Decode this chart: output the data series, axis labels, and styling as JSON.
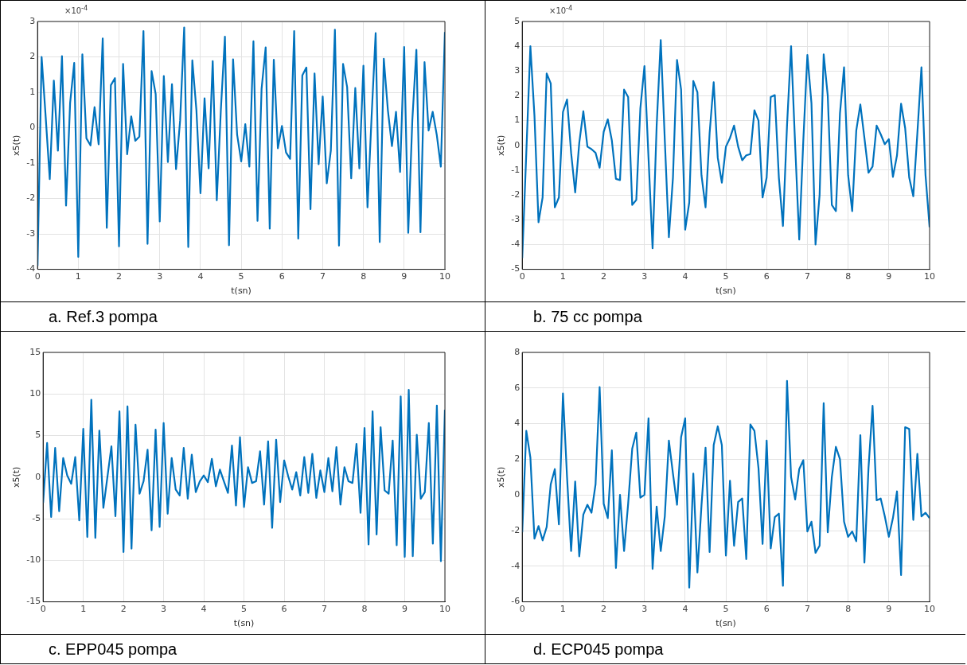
{
  "chart_data": [
    {
      "type": "line",
      "title": "a. Ref.3 pompa",
      "ylabel": "x5(t)",
      "xlabel": "t(sn)",
      "annotations": [
        "×10$^{-4}$"
      ],
      "grid": true,
      "legend": false,
      "marker": "none",
      "line_style": "solid",
      "xlim": [
        0,
        10
      ],
      "xticks": [
        0,
        1,
        2,
        3,
        4,
        5,
        6,
        7,
        8,
        9,
        10
      ],
      "ylim": [
        -4,
        3
      ],
      "yticks": [
        -4,
        -3,
        -2,
        -1,
        0,
        1,
        2,
        3
      ],
      "x": [
        0,
        0.1,
        0.2,
        0.3,
        0.4,
        0.5,
        0.6,
        0.7,
        0.8,
        0.9,
        1,
        1.1,
        1.2,
        1.3,
        1.4,
        1.5,
        1.6,
        1.7,
        1.8,
        1.9,
        2,
        2.1,
        2.2,
        2.3,
        2.4,
        2.5,
        2.6,
        2.7,
        2.8,
        2.9,
        3,
        3.1,
        3.2,
        3.3,
        3.4,
        3.5,
        3.6,
        3.7,
        3.8,
        3.9,
        4,
        4.1,
        4.2,
        4.3,
        4.4,
        4.5,
        4.6,
        4.7,
        4.8,
        4.9,
        5,
        5.1,
        5.2,
        5.3,
        5.4,
        5.5,
        5.6,
        5.7,
        5.8,
        5.9,
        6,
        6.1,
        6.2,
        6.3,
        6.4,
        6.5,
        6.6,
        6.7,
        6.8,
        6.9,
        7,
        7.1,
        7.2,
        7.3,
        7.4,
        7.5,
        7.6,
        7.7,
        7.8,
        7.9,
        8,
        8.1,
        8.2,
        8.3,
        8.4,
        8.5,
        8.6,
        8.7,
        8.8,
        8.9,
        9,
        9.1,
        9.2,
        9.3,
        9.4,
        9.5,
        9.6,
        9.7,
        9.8,
        9.9,
        10
      ],
      "series": [
        {
          "color": "#0072bd",
          "values": [
            -3.9,
            2.0,
            0.3,
            -1.45,
            1.33,
            -0.65,
            2.02,
            -2.2,
            0.7,
            1.83,
            -3.65,
            2.07,
            -0.3,
            -0.5,
            0.58,
            -0.47,
            2.52,
            -2.83,
            1.2,
            1.4,
            -3.35,
            1.8,
            -0.75,
            0.32,
            -0.37,
            -0.25,
            2.73,
            -3.28,
            1.6,
            0.95,
            -2.65,
            1.46,
            -0.97,
            1.23,
            -1.17,
            0.2,
            2.83,
            -3.37,
            1.9,
            0.5,
            -1.85,
            0.83,
            -1.15,
            1.88,
            -2.05,
            0.5,
            2.57,
            -3.32,
            1.93,
            -0.2,
            -0.95,
            0.1,
            -1.1,
            2.44,
            -2.63,
            1.1,
            2.27,
            -2.85,
            1.92,
            -0.58,
            0.05,
            -0.7,
            -0.88,
            2.73,
            -3.13,
            1.48,
            1.7,
            -2.3,
            1.53,
            -1.03,
            0.88,
            -1.57,
            -0.65,
            2.77,
            -3.33,
            1.8,
            1.15,
            -1.43,
            1.12,
            -1.15,
            1.75,
            -2.25,
            0.3,
            2.67,
            -3.23,
            1.95,
            0.5,
            -0.52,
            0.45,
            -1.25,
            2.28,
            -2.97,
            0.2,
            2.2,
            -2.95,
            1.85,
            -0.08,
            0.45,
            -0.2,
            -1.1,
            2.7
          ]
        }
      ]
    },
    {
      "type": "line",
      "title": "b. 75 cc pompa",
      "ylabel": "x5(t)",
      "xlabel": "t(sn)",
      "annotations": [
        "×10$^{-4}$"
      ],
      "grid": true,
      "legend": false,
      "marker": "none",
      "line_style": "solid",
      "xlim": [
        0,
        10
      ],
      "xticks": [
        0,
        1,
        2,
        3,
        4,
        5,
        6,
        7,
        8,
        9,
        10
      ],
      "ylim": [
        -5,
        5
      ],
      "yticks": [
        -5,
        -4,
        -3,
        -2,
        -1,
        0,
        1,
        2,
        3,
        4,
        5
      ],
      "x": [
        0,
        0.1,
        0.2,
        0.3,
        0.4,
        0.5,
        0.6,
        0.7,
        0.8,
        0.9,
        1,
        1.1,
        1.2,
        1.3,
        1.4,
        1.5,
        1.6,
        1.7,
        1.8,
        1.9,
        2,
        2.1,
        2.2,
        2.3,
        2.4,
        2.5,
        2.6,
        2.7,
        2.8,
        2.9,
        3,
        3.1,
        3.2,
        3.3,
        3.4,
        3.5,
        3.6,
        3.7,
        3.8,
        3.9,
        4,
        4.1,
        4.2,
        4.3,
        4.4,
        4.5,
        4.6,
        4.7,
        4.8,
        4.9,
        5,
        5.1,
        5.2,
        5.3,
        5.4,
        5.5,
        5.6,
        5.7,
        5.8,
        5.9,
        6,
        6.1,
        6.2,
        6.3,
        6.4,
        6.5,
        6.6,
        6.7,
        6.8,
        6.9,
        7,
        7.1,
        7.2,
        7.3,
        7.4,
        7.5,
        7.6,
        7.7,
        7.8,
        7.9,
        8,
        8.1,
        8.2,
        8.3,
        8.4,
        8.5,
        8.6,
        8.7,
        8.8,
        8.9,
        9,
        9.1,
        9.2,
        9.3,
        9.4,
        9.5,
        9.6,
        9.7,
        9.8,
        9.9,
        10
      ],
      "series": [
        {
          "color": "#0072bd",
          "values": [
            -4.55,
            -0.3,
            4.0,
            1.2,
            -3.1,
            -2.1,
            2.9,
            2.5,
            -2.5,
            -2.1,
            1.35,
            1.85,
            -0.3,
            -1.9,
            0.1,
            1.38,
            -0.05,
            -0.15,
            -0.3,
            -0.9,
            0.55,
            1.05,
            0.2,
            -1.35,
            -1.4,
            2.25,
            1.95,
            -2.4,
            -2.2,
            1.5,
            3.2,
            -0.5,
            -4.15,
            0.8,
            4.25,
            0.2,
            -3.7,
            -1.3,
            3.45,
            2.25,
            -3.4,
            -2.3,
            2.6,
            2.15,
            -1.2,
            -2.5,
            0.5,
            2.55,
            -0.5,
            -1.5,
            -0.05,
            0.3,
            0.8,
            -0.05,
            -0.6,
            -0.4,
            -0.35,
            1.42,
            1.0,
            -2.1,
            -1.3,
            1.95,
            2.03,
            -1.3,
            -3.25,
            0.8,
            4.0,
            0,
            -3.8,
            0.2,
            3.65,
            1.7,
            -4.0,
            -2.0,
            3.67,
            2.0,
            -2.4,
            -2.65,
            1.3,
            3.15,
            -1.2,
            -2.65,
            0.6,
            1.65,
            0.3,
            -1.1,
            -0.85,
            0.8,
            0.45,
            0.05,
            0.25,
            -1.27,
            -0.4,
            1.68,
            0.7,
            -1.3,
            -2.05,
            0.5,
            3.15,
            -1.2,
            -3.3
          ]
        }
      ]
    },
    {
      "type": "line",
      "title": "c. EPP045 pompa",
      "ylabel": "x5(t)",
      "xlabel": "t(sn)",
      "grid": true,
      "legend": false,
      "marker": "none",
      "line_style": "solid",
      "xlim": [
        0,
        10
      ],
      "xticks": [
        0,
        1,
        2,
        3,
        4,
        5,
        6,
        7,
        8,
        9,
        10
      ],
      "ylim": [
        -15,
        15
      ],
      "yticks": [
        -15,
        -10,
        -5,
        0,
        5,
        10,
        15
      ],
      "x": [
        0,
        0.1,
        0.2,
        0.3,
        0.4,
        0.5,
        0.6,
        0.7,
        0.8,
        0.9,
        1,
        1.1,
        1.2,
        1.3,
        1.4,
        1.5,
        1.6,
        1.7,
        1.8,
        1.9,
        2,
        2.1,
        2.2,
        2.3,
        2.4,
        2.5,
        2.6,
        2.7,
        2.8,
        2.9,
        3,
        3.1,
        3.2,
        3.3,
        3.4,
        3.5,
        3.6,
        3.7,
        3.8,
        3.9,
        4,
        4.1,
        4.2,
        4.3,
        4.4,
        4.5,
        4.6,
        4.7,
        4.8,
        4.9,
        5,
        5.1,
        5.2,
        5.3,
        5.4,
        5.5,
        5.6,
        5.7,
        5.8,
        5.9,
        6,
        6.1,
        6.2,
        6.3,
        6.4,
        6.5,
        6.6,
        6.7,
        6.8,
        6.9,
        7,
        7.1,
        7.2,
        7.3,
        7.4,
        7.5,
        7.6,
        7.7,
        7.8,
        7.9,
        8,
        8.1,
        8.2,
        8.3,
        8.4,
        8.5,
        8.6,
        8.7,
        8.8,
        8.9,
        9,
        9.1,
        9.2,
        9.3,
        9.4,
        9.5,
        9.6,
        9.7,
        9.8,
        9.9,
        10
      ],
      "series": [
        {
          "color": "#0072bd",
          "values": [
            -3.1,
            4.1,
            -4.8,
            3.5,
            -4.1,
            2.3,
            0.2,
            -0.8,
            2.4,
            -5.2,
            5.8,
            -7.2,
            9.3,
            -7.3,
            5.6,
            -3.7,
            0,
            3.7,
            -4.7,
            7.9,
            -9.0,
            8.5,
            -8.6,
            6.3,
            -2.0,
            -0.5,
            3.3,
            -6.4,
            5.7,
            -6.0,
            6.5,
            -4.4,
            2.3,
            -1.5,
            -2.2,
            3.5,
            -2.6,
            2.7,
            -1.8,
            -0.5,
            0.2,
            -0.6,
            2.2,
            -1.1,
            0.9,
            -0.5,
            -1.9,
            3.8,
            -3.4,
            4.8,
            -3.6,
            1.2,
            -0.7,
            -0.5,
            3.1,
            -3.3,
            4.3,
            -6.1,
            4.5,
            -3.0,
            2.0,
            0.1,
            -1.5,
            0.6,
            -2.2,
            2.4,
            -1.9,
            2.8,
            -2.5,
            0.8,
            -1.8,
            2.3,
            -1.7,
            3.6,
            -3.3,
            1.2,
            -0.5,
            -0.7,
            4.0,
            -4.3,
            5.9,
            -8.1,
            7.9,
            -6.9,
            6.0,
            -1.6,
            -2.0,
            4.4,
            -8.2,
            9.7,
            -9.6,
            10.5,
            -9.5,
            5.1,
            -2.6,
            -1.8,
            6.5,
            -8.0,
            8.6,
            -10.1,
            8.1
          ]
        }
      ]
    },
    {
      "type": "line",
      "title": "d. ECP045 pompa",
      "ylabel": "x5(t)",
      "xlabel": "t(sn)",
      "grid": true,
      "legend": false,
      "marker": "none",
      "line_style": "solid",
      "xlim": [
        0,
        10
      ],
      "xticks": [
        0,
        1,
        2,
        3,
        4,
        5,
        6,
        7,
        8,
        9,
        10
      ],
      "ylim": [
        -6,
        8
      ],
      "yticks": [
        -6,
        -4,
        -2,
        0,
        2,
        4,
        6,
        8
      ],
      "x": [
        0,
        0.1,
        0.2,
        0.3,
        0.4,
        0.5,
        0.6,
        0.7,
        0.8,
        0.9,
        1,
        1.1,
        1.2,
        1.3,
        1.4,
        1.5,
        1.6,
        1.7,
        1.8,
        1.9,
        2,
        2.1,
        2.2,
        2.3,
        2.4,
        2.5,
        2.6,
        2.7,
        2.8,
        2.9,
        3,
        3.1,
        3.2,
        3.3,
        3.4,
        3.5,
        3.6,
        3.7,
        3.8,
        3.9,
        4,
        4.1,
        4.2,
        4.3,
        4.4,
        4.5,
        4.6,
        4.7,
        4.8,
        4.9,
        5,
        5.1,
        5.2,
        5.3,
        5.4,
        5.5,
        5.6,
        5.7,
        5.8,
        5.9,
        6,
        6.1,
        6.2,
        6.3,
        6.4,
        6.5,
        6.6,
        6.7,
        6.8,
        6.9,
        7,
        7.1,
        7.2,
        7.3,
        7.4,
        7.5,
        7.6,
        7.7,
        7.8,
        7.9,
        8,
        8.1,
        8.2,
        8.3,
        8.4,
        8.5,
        8.6,
        8.7,
        8.8,
        8.9,
        9,
        9.1,
        9.2,
        9.3,
        9.4,
        9.5,
        9.6,
        9.7,
        9.8,
        9.9,
        10
      ],
      "series": [
        {
          "color": "#0072bd",
          "values": [
            -2.1,
            3.6,
            2.1,
            -2.45,
            -1.75,
            -2.55,
            -1.8,
            0.6,
            1.45,
            -1.65,
            5.7,
            1.0,
            -3.15,
            0.75,
            -3.45,
            -1.1,
            -0.55,
            -1.0,
            0.6,
            6.05,
            -0.5,
            -1.3,
            2.5,
            -4.1,
            0,
            -3.15,
            -0.5,
            2.6,
            3.5,
            -0.15,
            0,
            4.3,
            -4.15,
            -0.65,
            -3.15,
            -1.2,
            3.05,
            1.2,
            -0.55,
            3.25,
            4.3,
            -5.2,
            1.2,
            -4.35,
            -0.6,
            2.65,
            -3.2,
            2.8,
            3.85,
            2.8,
            -3.4,
            0.8,
            -2.85,
            -0.4,
            -0.2,
            -3.6,
            3.95,
            3.6,
            1.5,
            -2.75,
            3.05,
            -3.0,
            -1.25,
            -1.05,
            -5.1,
            6.4,
            1.0,
            -0.25,
            1.45,
            1.95,
            -2.05,
            -1.5,
            -3.25,
            -2.85,
            5.15,
            -2.1,
            1.0,
            2.7,
            2.0,
            -1.5,
            -2.35,
            -2.05,
            -2.6,
            3.35,
            -3.8,
            1.5,
            5.0,
            -0.3,
            -0.2,
            -1.2,
            -2.35,
            -1.3,
            0.2,
            -4.5,
            3.8,
            3.7,
            -1.4,
            2.3,
            -1.2,
            -1.0,
            -1.3
          ]
        }
      ]
    }
  ]
}
